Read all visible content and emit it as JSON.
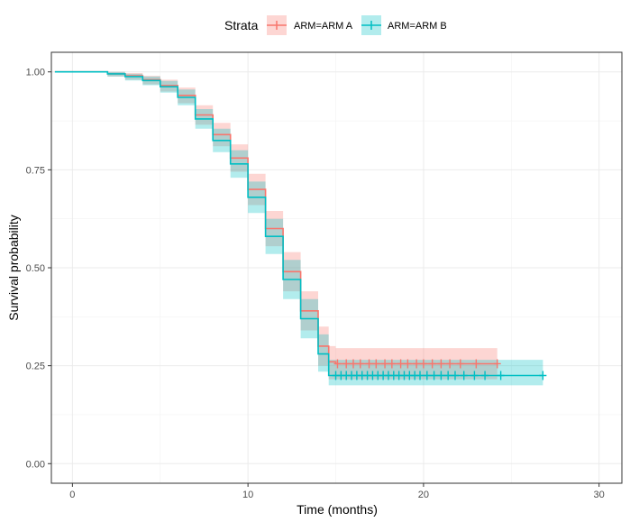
{
  "chart_data": {
    "type": "line",
    "subtype": "kaplan-meier step curve with confidence bands and censor marks",
    "xlabel": "Time (months)",
    "ylabel": "Survival probability",
    "xlim": [
      -1.2,
      31.3
    ],
    "ylim": [
      -0.05,
      1.05
    ],
    "x_ticks": [
      0,
      10,
      20,
      30
    ],
    "x_tick_labels": [
      "0",
      "10",
      "20",
      "30"
    ],
    "y_ticks": [
      0,
      0.25,
      0.5,
      0.75,
      1.0
    ],
    "y_tick_labels": [
      "0.00",
      "0.25",
      "0.50",
      "0.75",
      "1.00"
    ],
    "grid": true,
    "legend": {
      "title": "Strata",
      "position": "top",
      "entries": [
        "ARM=ARM A",
        "ARM=ARM B"
      ]
    },
    "series": [
      {
        "name": "ARM=ARM A",
        "color": "#F8766D",
        "x": [
          -1,
          0,
          1,
          2,
          3,
          4,
          5,
          6,
          7,
          8,
          9,
          10,
          11,
          12,
          13,
          14,
          14.6,
          15,
          24.2
        ],
        "y": [
          1.0,
          1.0,
          1.0,
          0.995,
          0.99,
          0.98,
          0.965,
          0.94,
          0.89,
          0.84,
          0.78,
          0.7,
          0.6,
          0.49,
          0.39,
          0.3,
          0.26,
          0.255,
          0.255
        ],
        "lower": [
          1.0,
          1.0,
          1.0,
          0.988,
          0.98,
          0.968,
          0.95,
          0.92,
          0.865,
          0.81,
          0.745,
          0.66,
          0.555,
          0.44,
          0.34,
          0.25,
          0.215,
          0.215,
          0.215
        ],
        "upper": [
          1.0,
          1.0,
          1.0,
          1.0,
          0.997,
          0.99,
          0.98,
          0.96,
          0.915,
          0.87,
          0.815,
          0.74,
          0.645,
          0.54,
          0.44,
          0.35,
          0.3,
          0.295,
          0.295
        ],
        "censor_x": [
          15.1,
          15.6,
          16.0,
          16.4,
          16.9,
          17.3,
          17.8,
          18.2,
          18.7,
          19.1,
          19.6,
          20.0,
          20.5,
          21.0,
          21.5,
          22.1,
          23.0,
          24.2
        ],
        "censor_y": 0.255
      },
      {
        "name": "ARM=ARM B",
        "color": "#00BFC4",
        "x": [
          -1,
          0,
          1,
          2,
          3,
          4,
          5,
          6,
          7,
          8,
          9,
          10,
          11,
          12,
          13,
          14,
          14.6,
          15,
          26.8
        ],
        "y": [
          1.0,
          1.0,
          1.0,
          0.995,
          0.988,
          0.978,
          0.962,
          0.935,
          0.88,
          0.825,
          0.765,
          0.68,
          0.58,
          0.47,
          0.37,
          0.28,
          0.225,
          0.225,
          0.225
        ],
        "lower": [
          1.0,
          1.0,
          1.0,
          0.988,
          0.978,
          0.966,
          0.947,
          0.915,
          0.855,
          0.795,
          0.73,
          0.64,
          0.535,
          0.42,
          0.32,
          0.235,
          0.2,
          0.2,
          0.2
        ],
        "upper": [
          1.0,
          1.0,
          1.0,
          1.0,
          0.995,
          0.988,
          0.977,
          0.955,
          0.905,
          0.855,
          0.8,
          0.72,
          0.625,
          0.52,
          0.42,
          0.33,
          0.265,
          0.265,
          0.265
        ],
        "censor_x": [
          15.0,
          15.3,
          15.6,
          15.9,
          16.2,
          16.5,
          16.8,
          17.1,
          17.4,
          17.7,
          18.0,
          18.3,
          18.6,
          18.9,
          19.2,
          19.5,
          19.8,
          20.2,
          20.6,
          21.0,
          21.4,
          21.8,
          22.3,
          22.9,
          23.5,
          24.4,
          26.8
        ],
        "censor_y": 0.225
      }
    ]
  }
}
